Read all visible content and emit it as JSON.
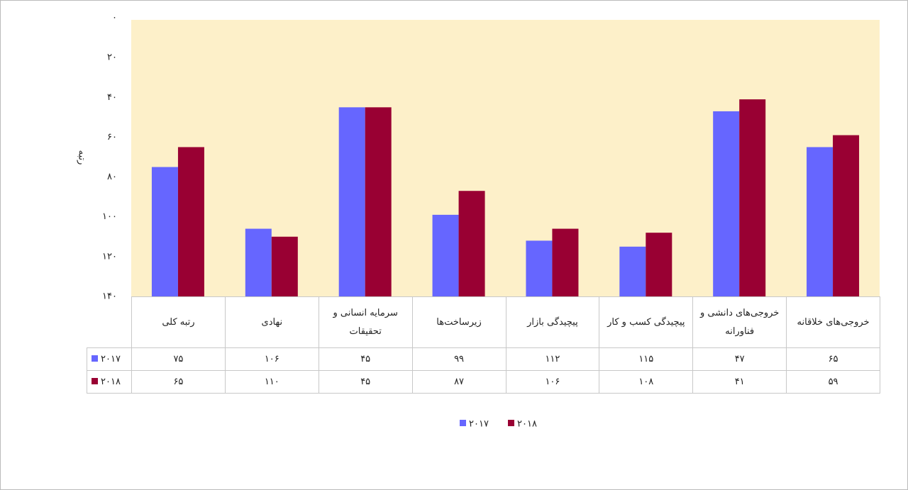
{
  "chart_data": {
    "type": "bar",
    "y_label": "رتبه",
    "categories": [
      "رتبه کلی",
      "نهادی",
      "سرمایه انسانی و تحقیقات",
      "زیرساخت‌ها",
      "پیچیدگی بازار",
      "پیچیدگی کسب و کار",
      "خروجی‌های دانشی و فناورانه",
      "خروجی‌های خلاقانه"
    ],
    "series": [
      {
        "name": "۲۰۱۷",
        "color": "#6666ff",
        "values": [
          75,
          106,
          45,
          99,
          112,
          115,
          47,
          65
        ],
        "value_labels": [
          "۷۵",
          "۱۰۶",
          "۴۵",
          "۹۹",
          "۱۱۲",
          "۱۱۵",
          "۴۷",
          "۶۵"
        ]
      },
      {
        "name": "۲۰۱۸",
        "color": "#990033",
        "values": [
          65,
          110,
          45,
          87,
          106,
          108,
          41,
          59
        ],
        "value_labels": [
          "۶۵",
          "۱۱۰",
          "۴۵",
          "۸۷",
          "۱۰۶",
          "۱۰۸",
          "۴۱",
          "۵۹"
        ]
      }
    ],
    "ylim": [
      0,
      140
    ],
    "y_inverted": true,
    "yticks": [
      {
        "value": 0,
        "label": "۰"
      },
      {
        "value": 20,
        "label": "۲۰"
      },
      {
        "value": 40,
        "label": "۴۰"
      },
      {
        "value": 60,
        "label": "۶۰"
      },
      {
        "value": 80,
        "label": "۸۰"
      },
      {
        "value": 100,
        "label": "۱۰۰"
      },
      {
        "value": 120,
        "label": "۱۲۰"
      },
      {
        "value": 140,
        "label": "۱۴۰"
      }
    ],
    "plot_background": "#fdf0c9"
  }
}
